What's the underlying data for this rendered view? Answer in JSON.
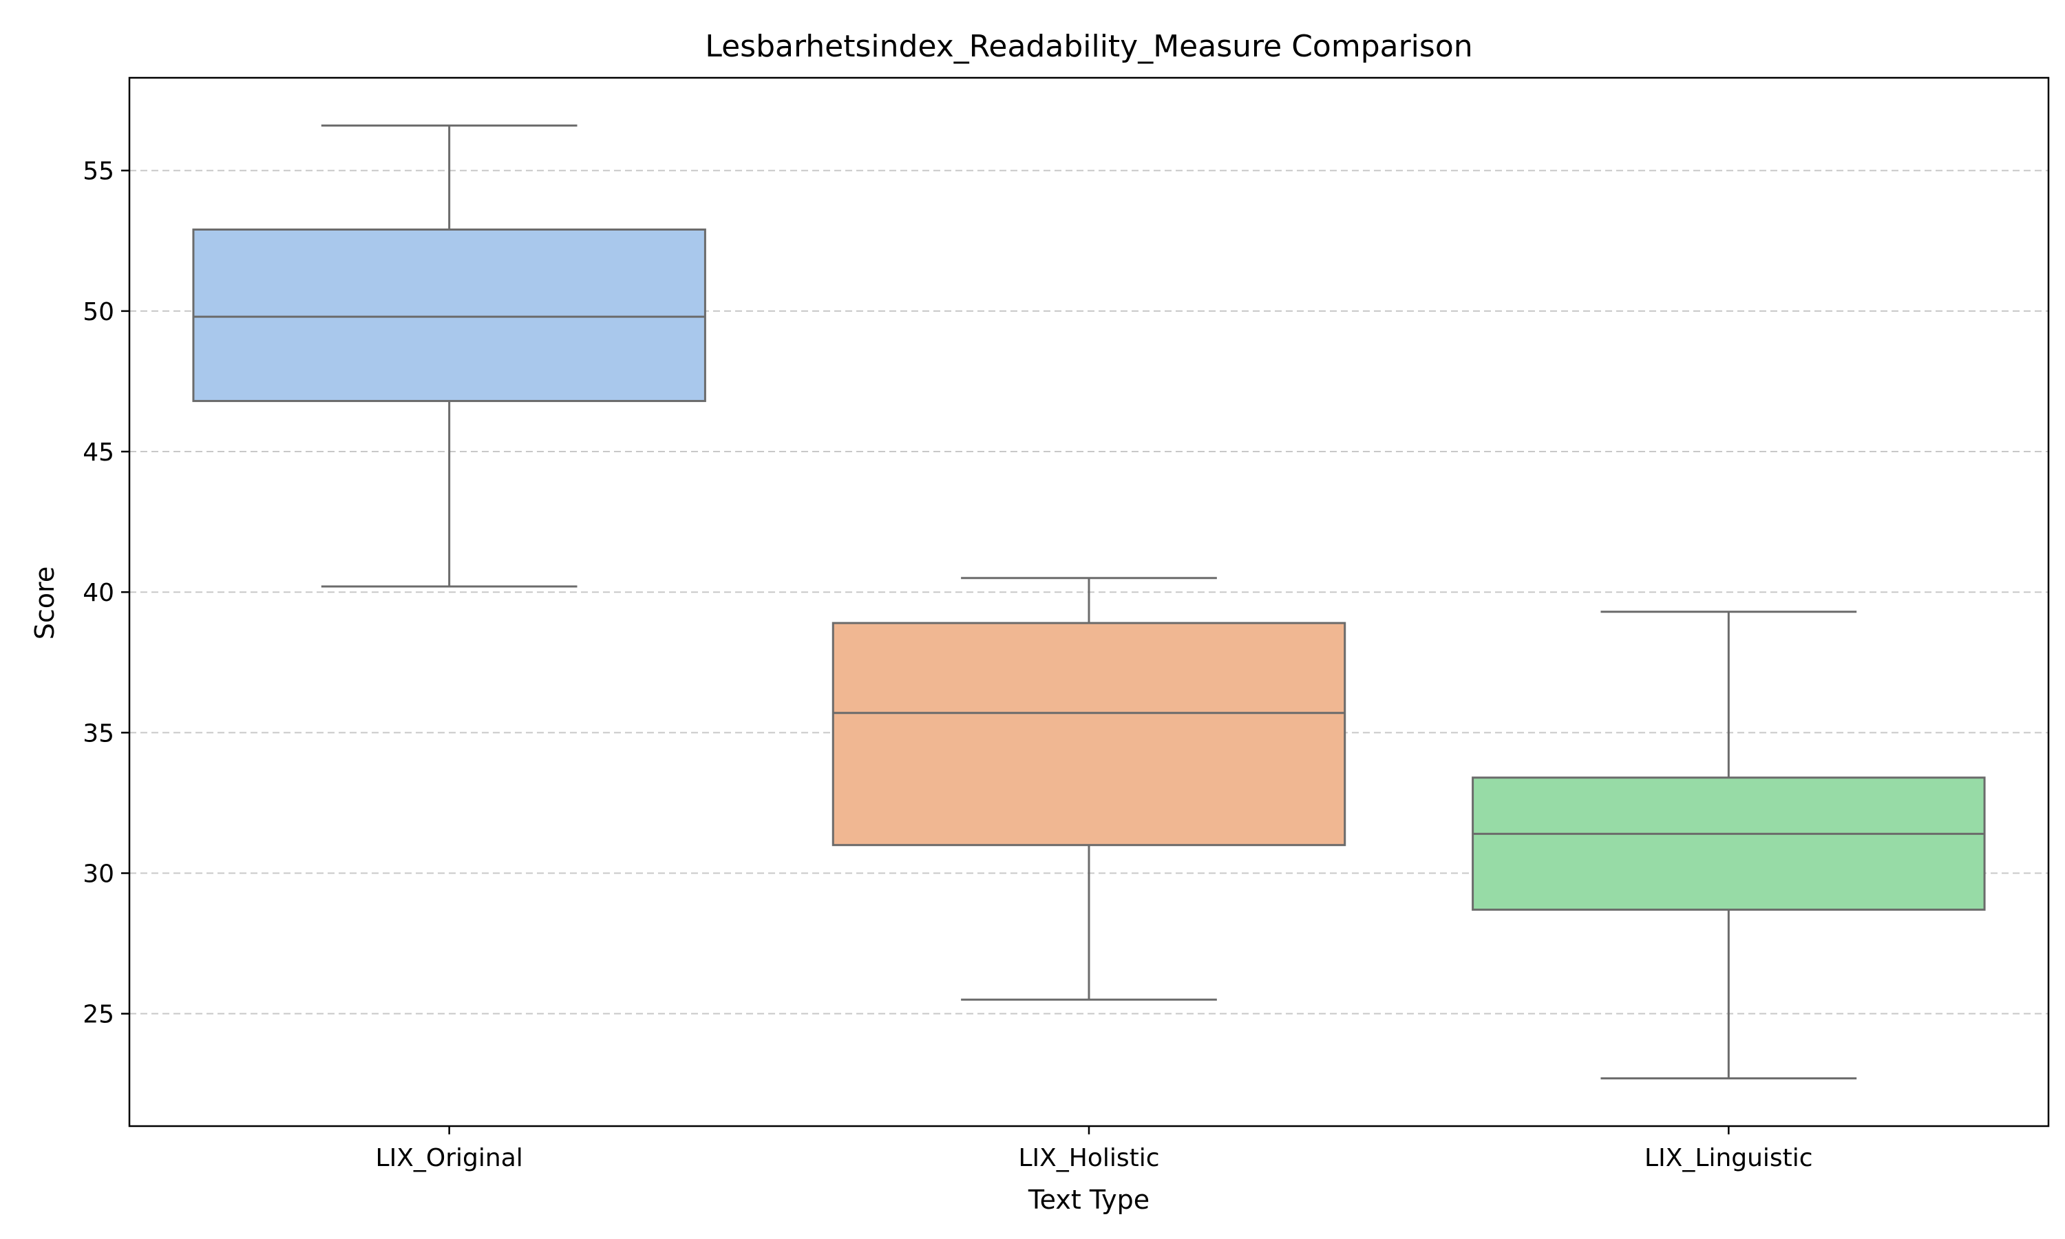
{
  "chart_data": {
    "type": "box",
    "title": "Lesbarhetsindex_Readability_Measure Comparison",
    "xlabel": "Text Type",
    "ylabel": "Score",
    "categories": [
      "LIX_Original",
      "LIX_Holistic",
      "LIX_Linguistic"
    ],
    "boxes": [
      {
        "category": "LIX_Original",
        "whisker_low": 40.2,
        "q1": 46.8,
        "median": 49.8,
        "q3": 52.9,
        "whisker_high": 56.6,
        "color": "#a9c8ec"
      },
      {
        "category": "LIX_Holistic",
        "whisker_low": 25.5,
        "q1": 31.0,
        "median": 35.7,
        "q3": 38.9,
        "whisker_high": 40.5,
        "color": "#f0b792"
      },
      {
        "category": "LIX_Linguistic",
        "whisker_low": 22.7,
        "q1": 28.7,
        "median": 31.4,
        "q3": 33.4,
        "whisker_high": 39.3,
        "color": "#97dba6"
      }
    ],
    "ylim": [
      21.0,
      58.3
    ],
    "yticks": [
      25,
      30,
      35,
      40,
      45,
      50,
      55
    ],
    "grid": "y dashed",
    "line_color": "#6b6b6b",
    "grid_color": "#c8c8c8"
  }
}
